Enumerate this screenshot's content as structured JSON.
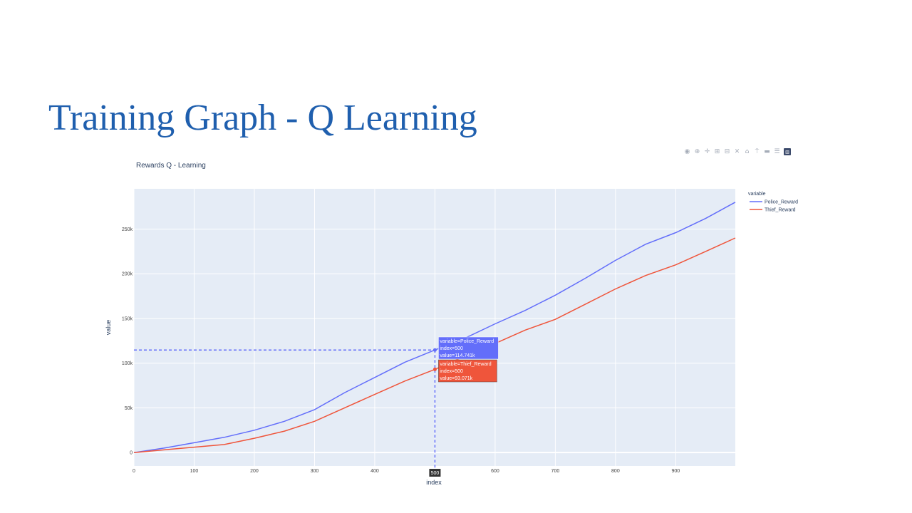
{
  "slide": {
    "title": "Training Graph - Q Learning"
  },
  "modebar": {
    "icons": [
      "camera-icon",
      "zoom-icon",
      "pan-icon",
      "zoom-in-icon",
      "zoom-out-icon",
      "autoscale-icon",
      "home-icon",
      "spike-lines-icon",
      "hover-closest-icon",
      "hover-compare-icon",
      "plotly-logo-icon"
    ],
    "glyphs": [
      "◉",
      "⊕",
      "✛",
      "⊞",
      "⊟",
      "✕",
      "⌂",
      "⍑",
      "▬",
      "☰",
      "▥"
    ]
  },
  "chart_data": {
    "type": "line",
    "title": "Rewards Q - Learning",
    "xlabel": "index",
    "ylabel": "value",
    "xlim": [
      0,
      999
    ],
    "ylim": [
      -15000,
      295000
    ],
    "xticks": [
      0,
      100,
      200,
      300,
      400,
      500,
      600,
      700,
      800,
      900
    ],
    "xtick_labels": [
      "0",
      "100",
      "200",
      "300",
      "400",
      "500",
      "600",
      "700",
      "800",
      "900"
    ],
    "yticks": [
      0,
      50000,
      100000,
      150000,
      200000,
      250000
    ],
    "ytick_labels": [
      "0",
      "50k",
      "100k",
      "150k",
      "200k",
      "250k"
    ],
    "grid": true,
    "legend": {
      "title": "variable",
      "position": "top-right"
    },
    "x": [
      0,
      50,
      100,
      150,
      200,
      250,
      300,
      350,
      400,
      450,
      500,
      550,
      600,
      650,
      700,
      750,
      800,
      850,
      900,
      950,
      999
    ],
    "series": [
      {
        "name": "Police_Reward",
        "color": "#636efa",
        "values": [
          0,
          5000,
          11000,
          17000,
          25000,
          35000,
          48000,
          67000,
          84000,
          101000,
          114741,
          128000,
          144000,
          159000,
          176000,
          195000,
          215000,
          233000,
          246000,
          262000,
          280000
        ]
      },
      {
        "name": "Thief_Reward",
        "color": "#ef553b",
        "values": [
          0,
          3000,
          6000,
          9000,
          16000,
          24000,
          35000,
          50000,
          65000,
          80000,
          93071,
          108000,
          122000,
          137000,
          149000,
          166000,
          183000,
          198000,
          210000,
          225000,
          240000
        ]
      }
    ],
    "hover": {
      "x_label": "500",
      "x": 500,
      "items": [
        {
          "series": 0,
          "y": 114741,
          "lines": [
            "variable=Police_Reward",
            "index=500",
            "value=114.741k"
          ]
        },
        {
          "series": 1,
          "y": 93071,
          "lines": [
            "variable=Thief_Reward",
            "index=500",
            "value=93.071k"
          ]
        }
      ]
    }
  }
}
